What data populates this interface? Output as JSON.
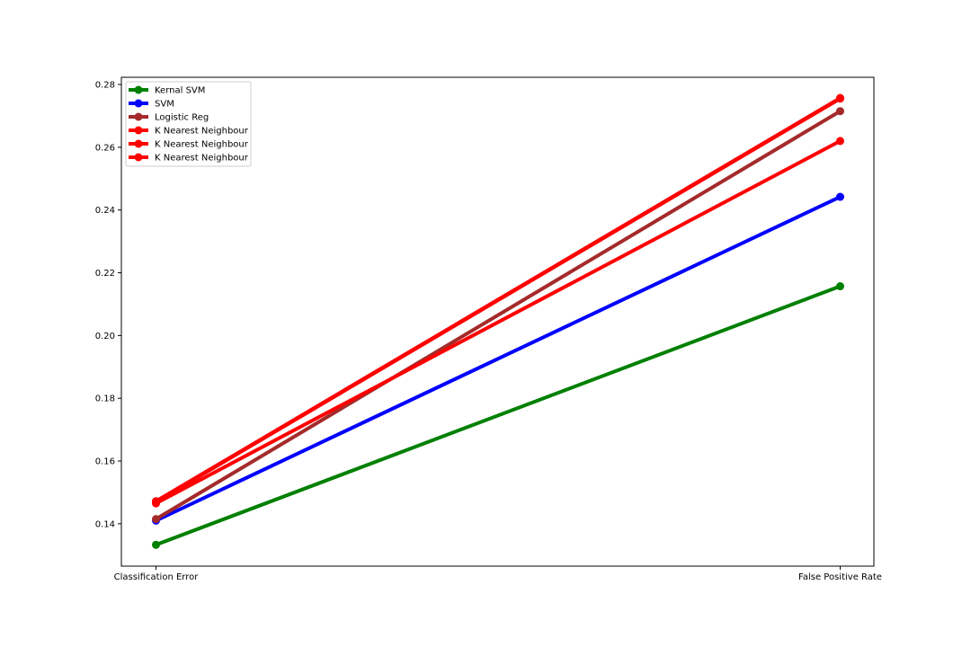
{
  "chart_data": {
    "type": "line",
    "categories": [
      "Classification Error",
      "False Positive Rate"
    ],
    "series": [
      {
        "name": "Kernal SVM",
        "color": "#008000",
        "values": [
          0.1333,
          0.2157
        ]
      },
      {
        "name": "SVM",
        "color": "#0000ff",
        "values": [
          0.141,
          0.2442
        ]
      },
      {
        "name": "Logistic Reg",
        "color": "#a52a2a",
        "values": [
          0.1415,
          0.2715
        ]
      },
      {
        "name": "K Nearest Neighbour",
        "color": "#ff0000",
        "values": [
          0.1465,
          0.262
        ]
      },
      {
        "name": "K Nearest Neighbour",
        "color": "#ff0000",
        "values": [
          0.147,
          0.2755
        ]
      },
      {
        "name": "K Nearest Neighbour",
        "color": "#ff0000",
        "values": [
          0.1472,
          0.2757
        ]
      }
    ],
    "ylim": [
      0.1265,
      0.2823
    ],
    "yticks": [
      "0.14",
      "0.16",
      "0.18",
      "0.20",
      "0.22",
      "0.24",
      "0.26",
      "0.28"
    ],
    "legend_position": "top-left",
    "grid": false
  }
}
